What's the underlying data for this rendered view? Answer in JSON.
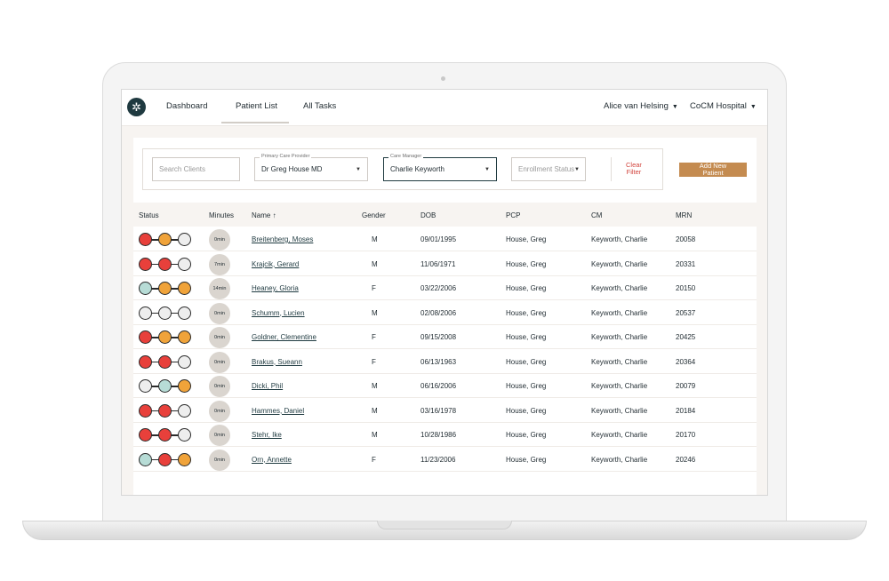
{
  "nav": {
    "items": [
      "Dashboard",
      "Patient List",
      "All Tasks"
    ],
    "user": "Alice van Helsing",
    "org": "CoCM Hospital"
  },
  "filters": {
    "search_placeholder": "Search Clients",
    "pcp_label": "Primary Care Provider",
    "pcp_value": "Dr Greg House MD",
    "cm_label": "Care Manager",
    "cm_value": "Charlie Keyworth",
    "enrollment_placeholder": "Enrollment Status",
    "clear_line1": "Clear",
    "clear_line2": "Filter",
    "add_line1": "Add New",
    "add_line2": "Patient"
  },
  "table": {
    "headers": {
      "status": "Status",
      "minutes": "Minutes",
      "name": "Name",
      "sort": "↑",
      "gender": "Gender",
      "dob": "DOB",
      "pcp": "PCP",
      "cm": "CM",
      "mrn": "MRN"
    },
    "rows": [
      {
        "status": [
          "red",
          "orange",
          "grey"
        ],
        "minutes": "0min",
        "name": "Breitenberg, Moses",
        "gender": "M",
        "dob": "09/01/1995",
        "pcp": "House, Greg",
        "cm": "Keyworth, Charlie",
        "mrn": "20058"
      },
      {
        "status": [
          "red",
          "red",
          "grey"
        ],
        "minutes": "7min",
        "name": "Krajcik, Gerard",
        "gender": "M",
        "dob": "11/06/1971",
        "pcp": "House, Greg",
        "cm": "Keyworth, Charlie",
        "mrn": "20331"
      },
      {
        "status": [
          "teal",
          "orange",
          "orange"
        ],
        "minutes": "14min",
        "name": "Heaney, Gloria",
        "gender": "F",
        "dob": "03/22/2006",
        "pcp": "House, Greg",
        "cm": "Keyworth, Charlie",
        "mrn": "20150"
      },
      {
        "status": [
          "grey",
          "grey",
          "grey"
        ],
        "minutes": "0min",
        "name": "Schumm, Lucien",
        "gender": "M",
        "dob": "02/08/2006",
        "pcp": "House, Greg",
        "cm": "Keyworth, Charlie",
        "mrn": "20537"
      },
      {
        "status": [
          "red",
          "orange",
          "orange"
        ],
        "minutes": "0min",
        "name": "Goldner, Clementine",
        "gender": "F",
        "dob": "09/15/2008",
        "pcp": "House, Greg",
        "cm": "Keyworth, Charlie",
        "mrn": "20425"
      },
      {
        "status": [
          "red",
          "red",
          "grey"
        ],
        "minutes": "0min",
        "name": "Brakus, Sueann",
        "gender": "F",
        "dob": "06/13/1963",
        "pcp": "House, Greg",
        "cm": "Keyworth, Charlie",
        "mrn": "20364"
      },
      {
        "status": [
          "grey",
          "teal",
          "orange"
        ],
        "minutes": "0min",
        "name": "Dicki, Phil",
        "gender": "M",
        "dob": "06/16/2006",
        "pcp": "House, Greg",
        "cm": "Keyworth, Charlie",
        "mrn": "20079"
      },
      {
        "status": [
          "red",
          "red",
          "grey"
        ],
        "minutes": "0min",
        "name": "Hammes, Daniel",
        "gender": "M",
        "dob": "03/16/1978",
        "pcp": "House, Greg",
        "cm": "Keyworth, Charlie",
        "mrn": "20184"
      },
      {
        "status": [
          "red",
          "red",
          "grey"
        ],
        "minutes": "0min",
        "name": "Stehr, Ike",
        "gender": "M",
        "dob": "10/28/1986",
        "pcp": "House, Greg",
        "cm": "Keyworth, Charlie",
        "mrn": "20170"
      },
      {
        "status": [
          "teal",
          "red",
          "orange"
        ],
        "minutes": "0min",
        "name": "Orn, Annette",
        "gender": "F",
        "dob": "11/23/2006",
        "pcp": "House, Greg",
        "cm": "Keyworth, Charlie",
        "mrn": "20246"
      }
    ]
  },
  "colors": {
    "red": "#e8403b",
    "orange": "#f0a33a",
    "teal": "#b7dcd6",
    "grey": "#eeeeee",
    "accent": "#c48b50",
    "navy": "#1f3a40"
  }
}
